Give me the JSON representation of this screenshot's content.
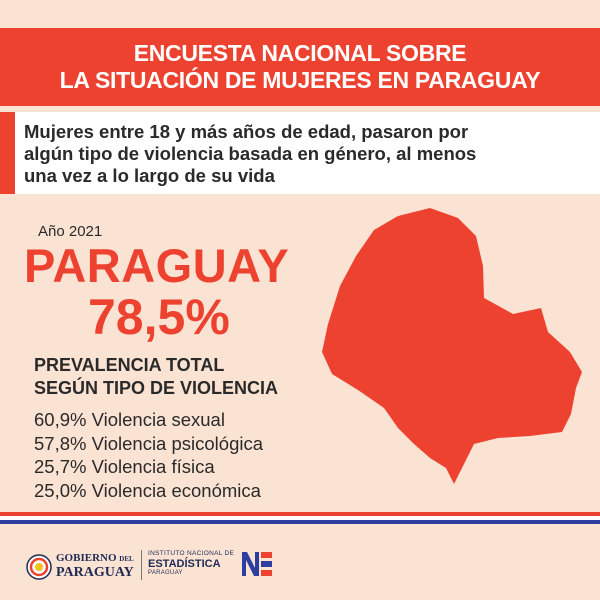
{
  "header": {
    "line1": "ENCUESTA NACIONAL SOBRE",
    "line2": "LA SITUACIÓN DE MUJERES EN PARAGUAY"
  },
  "subhead": {
    "line1": "Mujeres entre 18 y más años de edad, pasaron por",
    "line2": "algún tipo de violencia basada en género, al menos",
    "line3": "una vez a lo largo de su vida"
  },
  "year": "Año 2021",
  "country": "PARAGUAY",
  "total_pct": "78,5%",
  "prevalence": {
    "line1": "PREVALENCIA TOTAL",
    "line2": "SEGÚN TIPO DE VIOLENCIA",
    "items": [
      "60,9% Violencia sexual",
      "57,8% Violencia psicológica",
      "25,7% Violencia física",
      "25,0% Violencia económica"
    ]
  },
  "footer": {
    "gov_line1_a": "GOBIERNO",
    "gov_line1_b": "DEL",
    "gov_line2": "PARAGUAY",
    "ine_line1": "INSTITUTO NACIONAL DE",
    "ine_line2": "ESTADÍSTICA",
    "ine_line3": "PARAGUAY"
  },
  "colors": {
    "accent": "#ee4230",
    "background": "#fbe3d3",
    "navy": "#1f2a55",
    "blue": "#2c3fa0"
  }
}
